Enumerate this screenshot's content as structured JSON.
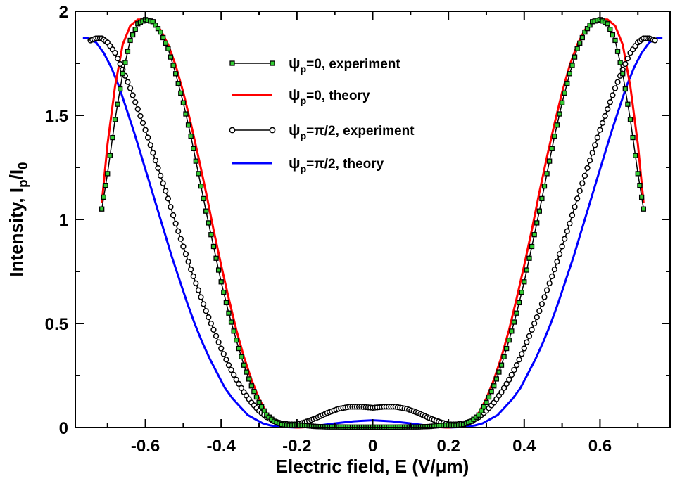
{
  "chart_data": {
    "type": "line",
    "title": "",
    "xlabel": "Electric field, E (V/μm)",
    "ylabel": "Intensity, I_p/I_0",
    "xlim": [
      -0.785,
      0.785
    ],
    "ylim": [
      0,
      2
    ],
    "x_ticks": [
      "-0.6",
      "-0.4",
      "-0.2",
      "0",
      "0.2",
      "0.4",
      "0.6"
    ],
    "x_tick_values": [
      -0.6,
      -0.4,
      -0.2,
      0,
      0.2,
      0.4,
      0.6
    ],
    "y_ticks": [
      "0",
      "0.5",
      "1",
      "1.5",
      "2"
    ],
    "y_tick_values": [
      0,
      0.5,
      1,
      1.5,
      2
    ],
    "legend": {
      "placement": "top-center",
      "entries": [
        {
          "symbol": "ψ",
          "sub": "p",
          "label": "=0, experiment"
        },
        {
          "symbol": "ψ",
          "sub": "p",
          "label": "=0, theory"
        },
        {
          "symbol": "ψ",
          "sub": "p",
          "label": "=π/2, experiment"
        },
        {
          "symbol": "ψ",
          "sub": "p",
          "label": "=π/2, theory"
        }
      ]
    },
    "series": [
      {
        "name": "ψp=0, experiment",
        "color": "#000000",
        "marker_fill": "#33cc33",
        "marker": "square",
        "x": [
          -0.715,
          -0.7,
          -0.68,
          -0.66,
          -0.64,
          -0.62,
          -0.6,
          -0.58,
          -0.56,
          -0.54,
          -0.52,
          -0.5,
          -0.48,
          -0.46,
          -0.44,
          -0.42,
          -0.4,
          -0.38,
          -0.36,
          -0.34,
          -0.32,
          -0.3,
          -0.28,
          -0.26,
          -0.24,
          -0.22,
          -0.2,
          -0.18,
          -0.15,
          -0.12,
          -0.09,
          -0.06,
          -0.03,
          0,
          0.03,
          0.06,
          0.09,
          0.12,
          0.15,
          0.18,
          0.2,
          0.22,
          0.24,
          0.26,
          0.28,
          0.3,
          0.32,
          0.34,
          0.36,
          0.38,
          0.4,
          0.42,
          0.44,
          0.46,
          0.48,
          0.5,
          0.52,
          0.54,
          0.56,
          0.58,
          0.6,
          0.62,
          0.64,
          0.66,
          0.68,
          0.7,
          0.715
        ],
        "y": [
          1.05,
          1.22,
          1.48,
          1.7,
          1.86,
          1.94,
          1.96,
          1.95,
          1.9,
          1.82,
          1.7,
          1.56,
          1.4,
          1.22,
          1.04,
          0.87,
          0.7,
          0.55,
          0.42,
          0.3,
          0.2,
          0.12,
          0.06,
          0.03,
          0.015,
          0.01,
          0.012,
          0.01,
          0.005,
          0.003,
          0.003,
          0.002,
          0.002,
          0.002,
          0.002,
          0.002,
          0.003,
          0.003,
          0.005,
          0.01,
          0.012,
          0.01,
          0.015,
          0.03,
          0.06,
          0.12,
          0.2,
          0.3,
          0.42,
          0.55,
          0.7,
          0.87,
          1.04,
          1.22,
          1.4,
          1.56,
          1.7,
          1.82,
          1.9,
          1.95,
          1.96,
          1.94,
          1.86,
          1.7,
          1.48,
          1.22,
          1.05
        ]
      },
      {
        "name": "ψp=0, theory",
        "color": "#ff0000",
        "x": [
          -0.715,
          -0.7,
          -0.68,
          -0.66,
          -0.64,
          -0.62,
          -0.6,
          -0.58,
          -0.56,
          -0.54,
          -0.52,
          -0.5,
          -0.48,
          -0.46,
          -0.44,
          -0.42,
          -0.4,
          -0.38,
          -0.36,
          -0.34,
          -0.32,
          -0.3,
          -0.28,
          -0.26,
          -0.24,
          -0.22,
          -0.2,
          -0.17,
          -0.14,
          -0.1,
          -0.05,
          0,
          0.05,
          0.1,
          0.14,
          0.17,
          0.2,
          0.22,
          0.24,
          0.26,
          0.28,
          0.3,
          0.32,
          0.34,
          0.36,
          0.38,
          0.4,
          0.42,
          0.44,
          0.46,
          0.48,
          0.5,
          0.52,
          0.54,
          0.56,
          0.58,
          0.6,
          0.62,
          0.64,
          0.66,
          0.68,
          0.7,
          0.715
        ],
        "y": [
          1.08,
          1.36,
          1.64,
          1.84,
          1.93,
          1.96,
          1.96,
          1.95,
          1.91,
          1.84,
          1.74,
          1.61,
          1.46,
          1.3,
          1.13,
          0.95,
          0.78,
          0.62,
          0.47,
          0.34,
          0.23,
          0.14,
          0.07,
          0.03,
          0.01,
          0.003,
          0.0,
          0.002,
          0.004,
          0.005,
          0.005,
          0.005,
          0.005,
          0.005,
          0.004,
          0.002,
          0.0,
          0.003,
          0.01,
          0.03,
          0.07,
          0.14,
          0.23,
          0.34,
          0.47,
          0.62,
          0.78,
          0.95,
          1.13,
          1.3,
          1.46,
          1.61,
          1.74,
          1.84,
          1.91,
          1.95,
          1.96,
          1.96,
          1.93,
          1.84,
          1.64,
          1.36,
          1.08
        ]
      },
      {
        "name": "ψp=π/2, experiment",
        "color": "#000000",
        "marker_fill": "#ffffff",
        "marker": "circle",
        "x": [
          -0.745,
          -0.73,
          -0.715,
          -0.7,
          -0.68,
          -0.66,
          -0.64,
          -0.62,
          -0.6,
          -0.58,
          -0.56,
          -0.54,
          -0.52,
          -0.5,
          -0.48,
          -0.46,
          -0.44,
          -0.42,
          -0.4,
          -0.38,
          -0.36,
          -0.34,
          -0.32,
          -0.3,
          -0.28,
          -0.26,
          -0.24,
          -0.22,
          -0.2,
          -0.18,
          -0.15,
          -0.12,
          -0.09,
          -0.06,
          -0.03,
          0,
          0.03,
          0.06,
          0.09,
          0.12,
          0.15,
          0.18,
          0.2,
          0.22,
          0.24,
          0.26,
          0.28,
          0.3,
          0.32,
          0.34,
          0.36,
          0.38,
          0.4,
          0.42,
          0.44,
          0.46,
          0.48,
          0.5,
          0.52,
          0.54,
          0.56,
          0.58,
          0.6,
          0.62,
          0.64,
          0.66,
          0.68,
          0.7,
          0.715,
          0.73,
          0.745
        ],
        "y": [
          1.86,
          1.87,
          1.87,
          1.85,
          1.8,
          1.72,
          1.63,
          1.53,
          1.43,
          1.32,
          1.21,
          1.1,
          0.98,
          0.87,
          0.76,
          0.66,
          0.56,
          0.47,
          0.38,
          0.3,
          0.23,
          0.17,
          0.12,
          0.08,
          0.05,
          0.03,
          0.02,
          0.015,
          0.015,
          0.025,
          0.045,
          0.07,
          0.09,
          0.1,
          0.1,
          0.095,
          0.1,
          0.1,
          0.09,
          0.07,
          0.045,
          0.025,
          0.015,
          0.015,
          0.02,
          0.03,
          0.05,
          0.08,
          0.12,
          0.17,
          0.23,
          0.3,
          0.38,
          0.47,
          0.56,
          0.66,
          0.76,
          0.87,
          0.98,
          1.1,
          1.21,
          1.32,
          1.43,
          1.53,
          1.63,
          1.72,
          1.8,
          1.85,
          1.87,
          1.87,
          1.86
        ]
      },
      {
        "name": "ψp=π/2, theory",
        "color": "#0000ff",
        "x": [
          -0.765,
          -0.75,
          -0.73,
          -0.71,
          -0.69,
          -0.67,
          -0.65,
          -0.63,
          -0.61,
          -0.59,
          -0.57,
          -0.55,
          -0.53,
          -0.51,
          -0.49,
          -0.47,
          -0.45,
          -0.43,
          -0.41,
          -0.39,
          -0.37,
          -0.35,
          -0.33,
          -0.31,
          -0.29,
          -0.27,
          -0.25,
          -0.23,
          -0.2,
          -0.17,
          -0.14,
          -0.1,
          -0.05,
          0,
          0.05,
          0.1,
          0.14,
          0.17,
          0.2,
          0.23,
          0.25,
          0.27,
          0.29,
          0.31,
          0.33,
          0.35,
          0.37,
          0.39,
          0.41,
          0.43,
          0.45,
          0.47,
          0.49,
          0.51,
          0.53,
          0.55,
          0.57,
          0.59,
          0.61,
          0.63,
          0.65,
          0.67,
          0.69,
          0.71,
          0.73,
          0.75,
          0.765
        ],
        "y": [
          1.87,
          1.87,
          1.85,
          1.8,
          1.73,
          1.64,
          1.53,
          1.42,
          1.3,
          1.18,
          1.06,
          0.94,
          0.82,
          0.71,
          0.6,
          0.5,
          0.41,
          0.33,
          0.26,
          0.19,
          0.14,
          0.1,
          0.06,
          0.04,
          0.02,
          0.01,
          0.005,
          0.002,
          0.0,
          0.003,
          0.01,
          0.02,
          0.03,
          0.035,
          0.03,
          0.02,
          0.01,
          0.003,
          0.0,
          0.002,
          0.005,
          0.01,
          0.02,
          0.04,
          0.06,
          0.1,
          0.14,
          0.19,
          0.26,
          0.33,
          0.41,
          0.5,
          0.6,
          0.71,
          0.82,
          0.94,
          1.06,
          1.18,
          1.3,
          1.42,
          1.53,
          1.64,
          1.73,
          1.8,
          1.85,
          1.87,
          1.87
        ]
      }
    ]
  }
}
